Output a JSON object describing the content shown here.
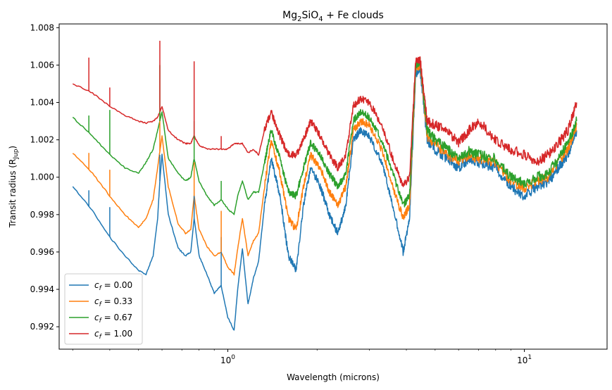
{
  "chart_data": {
    "type": "line",
    "title": "Mg₂SiO₄ + Fe clouds",
    "title_parts": {
      "base1": "Mg",
      "sub1": "2",
      "base2": "SiO",
      "sub2": "4",
      "suffix": " + Fe clouds"
    },
    "xlabel": "Wavelength (microns)",
    "ylabel": "Transit radius (Rᵥᵤₚ)",
    "ylabel_parts": {
      "base": "Transit radius (R",
      "sub": "Jup",
      "suffix": ")"
    },
    "xscale": "log",
    "xlim": [
      0.27,
      19
    ],
    "ylim": [
      0.9908,
      1.0082
    ],
    "grid": false,
    "legend_position": "lower-left",
    "x_tick_labels": [
      {
        "value": 1,
        "base": "10",
        "exp": "0"
      },
      {
        "value": 10,
        "base": "10",
        "exp": "1"
      }
    ],
    "yticks": [
      0.992,
      0.994,
      0.996,
      0.998,
      1.0,
      1.002,
      1.004,
      1.006,
      1.008
    ],
    "ytick_labels": [
      "0.992",
      "0.994",
      "0.996",
      "0.998",
      "1.000",
      "1.002",
      "1.004",
      "1.006",
      "1.008"
    ],
    "x": [
      0.3,
      0.35,
      0.4,
      0.45,
      0.5,
      0.53,
      0.56,
      0.58,
      0.59,
      0.6,
      0.63,
      0.68,
      0.72,
      0.75,
      0.77,
      0.8,
      0.85,
      0.9,
      0.95,
      1.0,
      1.05,
      1.08,
      1.12,
      1.17,
      1.22,
      1.27,
      1.33,
      1.4,
      1.5,
      1.6,
      1.7,
      1.8,
      1.9,
      2.05,
      2.2,
      2.35,
      2.5,
      2.65,
      2.8,
      3.0,
      3.3,
      3.6,
      3.9,
      4.1,
      4.3,
      4.45,
      4.7,
      5.0,
      5.5,
      6.0,
      6.5,
      7.0,
      8.0,
      9.0,
      10.0,
      11.0,
      12.0,
      13.0,
      14.0,
      15.0
    ],
    "series": [
      {
        "name": "c_f = 0.00",
        "label_base": "c",
        "label_sub": "f",
        "label_value": " = 0.00",
        "color": "#1f77b4",
        "values": [
          0.9995,
          0.9982,
          0.9968,
          0.9958,
          0.995,
          0.9948,
          0.9958,
          0.9978,
          0.9998,
          1.0012,
          0.998,
          0.9962,
          0.9958,
          0.996,
          0.9978,
          0.9958,
          0.9948,
          0.9938,
          0.9942,
          0.9925,
          0.9918,
          0.994,
          0.9962,
          0.9932,
          0.9946,
          0.9955,
          0.9985,
          1.001,
          0.999,
          0.9958,
          0.995,
          0.9985,
          1.0005,
          0.9995,
          0.998,
          0.997,
          0.9985,
          1.002,
          1.0025,
          1.0022,
          1.0008,
          0.9985,
          0.996,
          0.9978,
          1.0055,
          1.0058,
          1.002,
          1.0015,
          1.001,
          1.0005,
          1.001,
          1.0008,
          1.0005,
          0.9995,
          0.999,
          0.9995,
          0.9997,
          1.0005,
          1.0012,
          1.0025
        ]
      },
      {
        "name": "c_f = 0.33",
        "label_base": "c",
        "label_sub": "f",
        "label_value": " = 0.33",
        "color": "#ff7f0e",
        "values": [
          1.0013,
          1.0002,
          0.999,
          0.998,
          0.9973,
          0.9978,
          0.9988,
          1.0005,
          1.0014,
          1.0022,
          0.9995,
          0.9975,
          0.997,
          0.9972,
          0.999,
          0.9972,
          0.9963,
          0.9958,
          0.996,
          0.9952,
          0.9948,
          0.9962,
          0.9978,
          0.9958,
          0.9966,
          0.997,
          0.9995,
          1.002,
          1.0002,
          0.9978,
          0.9972,
          0.9995,
          1.0012,
          1.0005,
          0.9992,
          0.9985,
          0.9995,
          1.0025,
          1.003,
          1.0028,
          1.0015,
          0.9995,
          0.9978,
          0.9985,
          1.0058,
          1.006,
          1.0022,
          1.0018,
          1.0012,
          1.0008,
          1.0012,
          1.001,
          1.0008,
          0.9998,
          0.9994,
          0.9998,
          1.0,
          1.0008,
          1.0015,
          1.0028
        ]
      },
      {
        "name": "c_f = 0.67",
        "label_base": "c",
        "label_sub": "f",
        "label_value": " = 0.67",
        "color": "#2ca02c",
        "values": [
          1.0032,
          1.0022,
          1.0012,
          1.0005,
          1.0002,
          1.0008,
          1.0015,
          1.0025,
          1.003,
          1.0035,
          1.001,
          1.0002,
          0.9998,
          1.0,
          1.001,
          0.9998,
          0.999,
          0.9985,
          0.9988,
          0.9983,
          0.998,
          0.999,
          0.9998,
          0.9988,
          0.9992,
          0.9992,
          1.0008,
          1.0025,
          1.001,
          0.9992,
          0.999,
          1.0005,
          1.0018,
          1.0012,
          1.0002,
          0.9995,
          1.0002,
          1.003,
          1.0035,
          1.0032,
          1.002,
          1.0002,
          0.9985,
          0.999,
          1.006,
          1.0062,
          1.0025,
          1.002,
          1.0015,
          1.001,
          1.0014,
          1.0012,
          1.001,
          1.0,
          0.9997,
          1.0,
          1.0002,
          1.001,
          1.0018,
          1.003
        ]
      },
      {
        "name": "c_f = 1.00",
        "label_base": "c",
        "label_sub": "f",
        "label_value": " = 1.00",
        "color": "#d62728",
        "values": [
          1.005,
          1.0045,
          1.0038,
          1.0033,
          1.003,
          1.0029,
          1.003,
          1.0032,
          1.0035,
          1.0038,
          1.0025,
          1.002,
          1.0018,
          1.0018,
          1.0022,
          1.0017,
          1.0015,
          1.0015,
          1.0015,
          1.0015,
          1.0018,
          1.0018,
          1.0018,
          1.0013,
          1.0015,
          1.0012,
          1.0025,
          1.0035,
          1.0022,
          1.0012,
          1.0012,
          1.002,
          1.003,
          1.0022,
          1.0012,
          1.0005,
          1.0012,
          1.0038,
          1.0042,
          1.004,
          1.0028,
          1.001,
          0.9995,
          1.0,
          1.0062,
          1.0063,
          1.003,
          1.0028,
          1.0025,
          1.0018,
          1.0025,
          1.003,
          1.002,
          1.0015,
          1.0012,
          1.0008,
          1.0012,
          1.0018,
          1.0025,
          1.004
        ]
      }
    ],
    "spikes": [
      {
        "x": 0.34,
        "series": [
          0.9993,
          1.0013,
          1.0033,
          1.0064
        ]
      },
      {
        "x": 0.4,
        "series": [
          0.9984,
          1.0004,
          1.0036,
          1.0048
        ]
      },
      {
        "x": 0.59,
        "series": [
          1.0012,
          1.0035,
          1.006,
          1.0073
        ]
      },
      {
        "x": 0.77,
        "series": [
          0.999,
          1.0008,
          1.003,
          1.0062
        ]
      },
      {
        "x": 0.95,
        "series": [
          0.9968,
          0.9982,
          0.9998,
          1.0022
        ]
      }
    ]
  }
}
